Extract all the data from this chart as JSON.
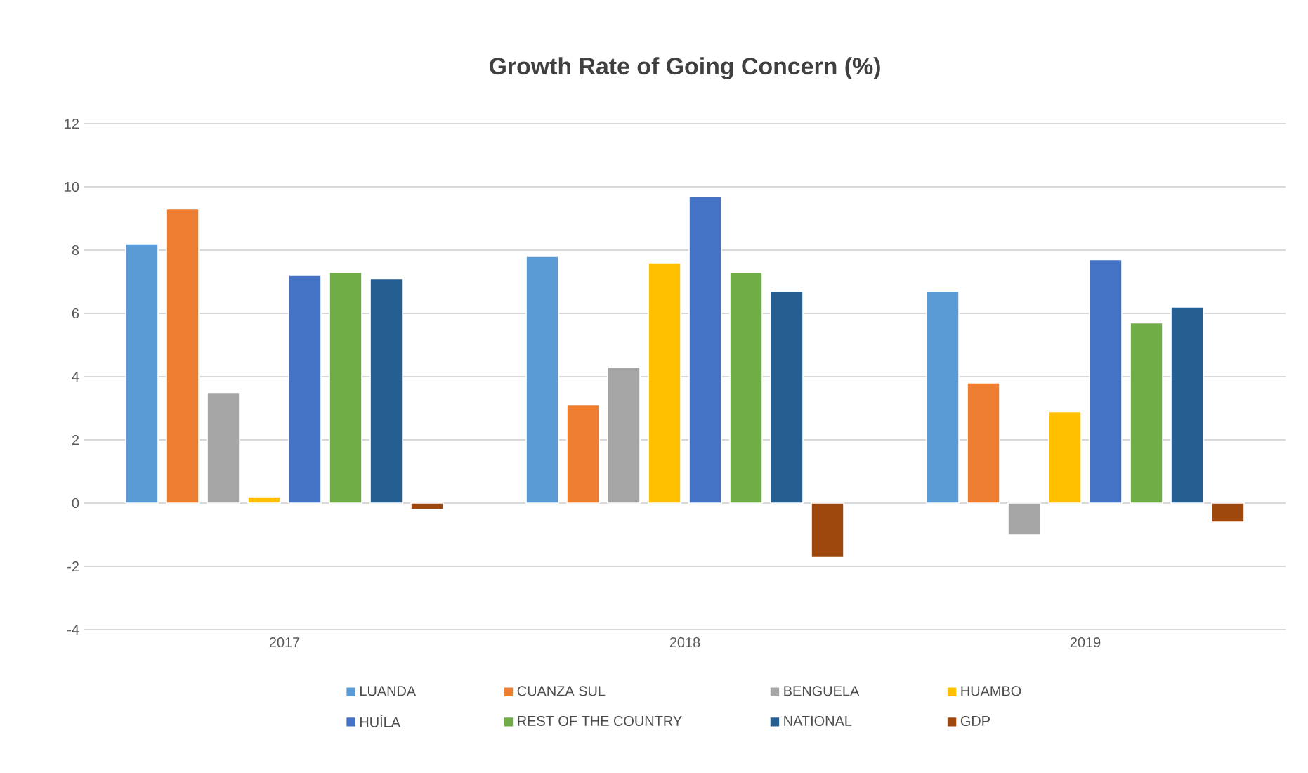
{
  "chart_data": {
    "type": "bar",
    "title": "Growth Rate of Going Concern (%)",
    "categories": [
      "2017",
      "2018",
      "2019"
    ],
    "series": [
      {
        "name": "LUANDA",
        "color": "#5b9bd5",
        "values": [
          8.2,
          7.8,
          6.7
        ]
      },
      {
        "name": "CUANZA SUL",
        "color": "#ed7d31",
        "values": [
          9.3,
          3.1,
          3.8
        ]
      },
      {
        "name": "BENGUELA",
        "color": "#a5a5a5",
        "values": [
          3.5,
          4.3,
          -1.0
        ]
      },
      {
        "name": "HUAMBO",
        "color": "#ffc000",
        "values": [
          0.2,
          7.6,
          2.9
        ]
      },
      {
        "name": "HUÍLA",
        "color": "#4472c4",
        "values": [
          7.2,
          9.7,
          7.7
        ]
      },
      {
        "name": "REST OF THE COUNTRY",
        "color": "#70ad47",
        "values": [
          7.3,
          7.3,
          5.7
        ]
      },
      {
        "name": "NATIONAL",
        "color": "#255e91",
        "values": [
          7.1,
          6.7,
          6.2
        ]
      },
      {
        "name": "GDP",
        "color": "#9e480e",
        "values": [
          -0.2,
          -1.7,
          -0.6
        ]
      }
    ],
    "ylim": [
      -4,
      12
    ],
    "yticks": [
      -4,
      -2,
      0,
      2,
      4,
      6,
      8,
      10,
      12
    ],
    "grid": "y",
    "legend": "bottom"
  }
}
